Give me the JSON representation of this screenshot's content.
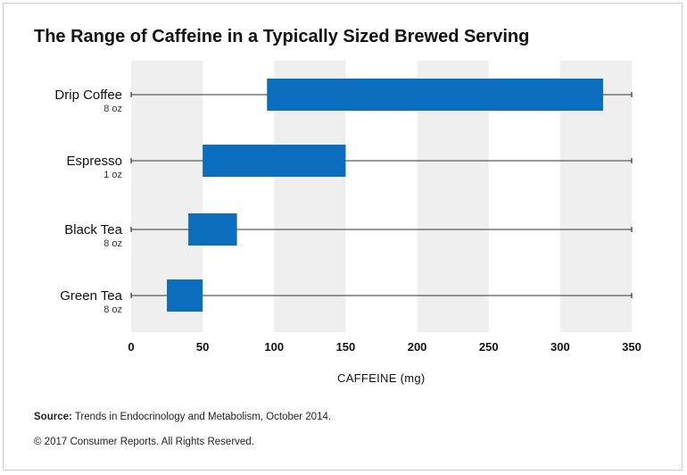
{
  "title": "The Range of Caffeine in a Typically Sized Brewed Serving",
  "source_label": "Source:",
  "source_text": "Trends in Endocrinology and Metabolism, October 2014.",
  "copyright": "© 2017 Consumer Reports. All Rights Reserved.",
  "colors": {
    "bar": "#0a6dbd",
    "band": "#efefef",
    "line": "#333333"
  },
  "chart_data": {
    "type": "bar",
    "orientation": "horizontal-range",
    "xlabel": "CAFFEINE (mg)",
    "xlim": [
      0,
      350
    ],
    "xticks": [
      0,
      50,
      100,
      150,
      200,
      250,
      300,
      350
    ],
    "grid": "alternating vertical bands",
    "categories": [
      {
        "name": "Drip Coffee",
        "serving": "8 oz",
        "min": 95,
        "max": 330
      },
      {
        "name": "Espresso",
        "serving": "1 oz",
        "min": 50,
        "max": 150
      },
      {
        "name": "Black Tea",
        "serving": "8 oz",
        "min": 40,
        "max": 74
      },
      {
        "name": "Green Tea",
        "serving": "8 oz",
        "min": 25,
        "max": 50
      }
    ]
  }
}
